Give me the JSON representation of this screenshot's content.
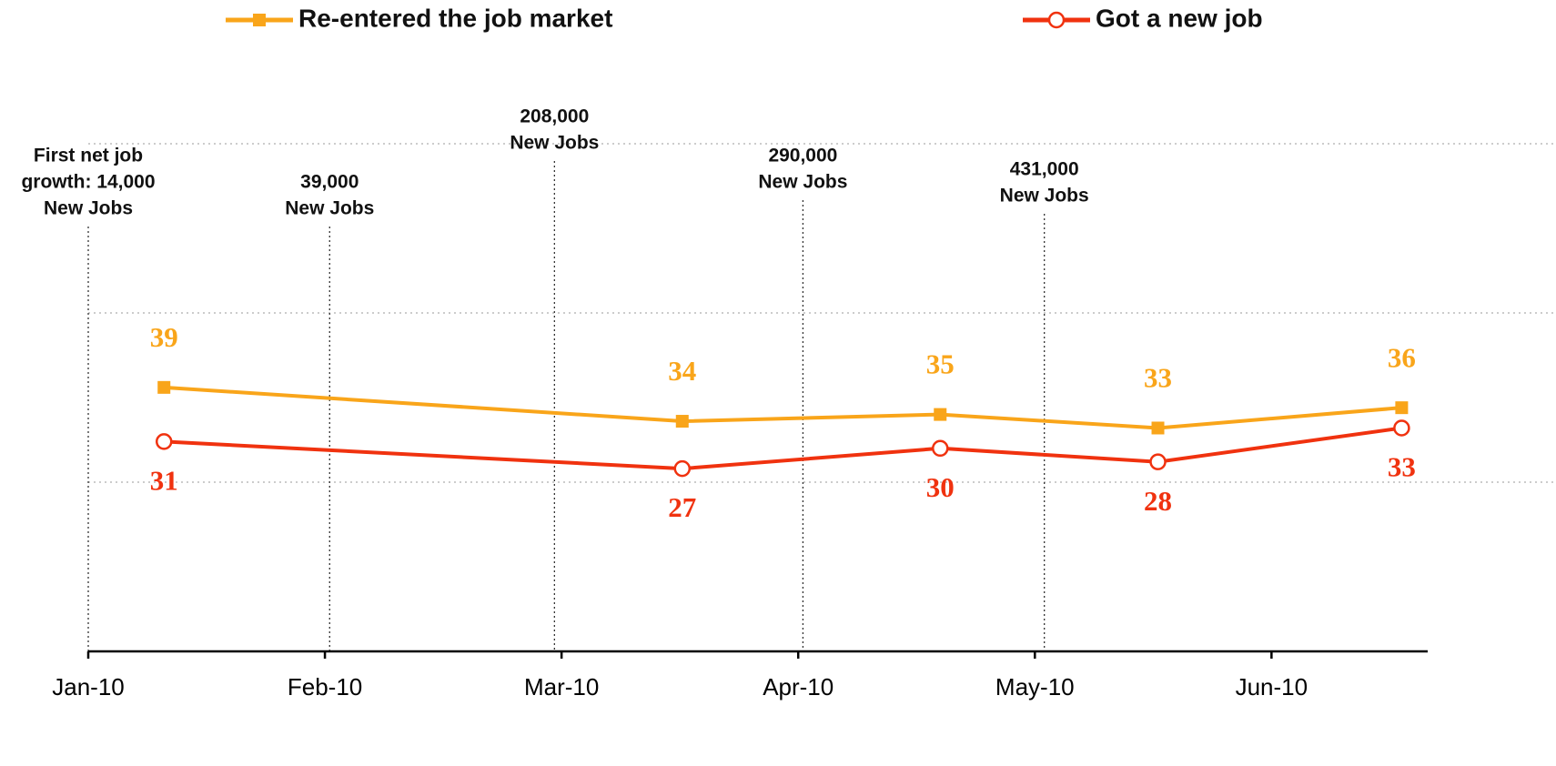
{
  "chart_data": {
    "type": "line",
    "x": [
      0.32,
      2.51,
      3.6,
      4.52,
      5.55
    ],
    "xlim": [
      0,
      5.66
    ],
    "xticks": [
      {
        "value": 0,
        "label": "Jan-10"
      },
      {
        "value": 1,
        "label": "Feb-10"
      },
      {
        "value": 2,
        "label": "Mar-10"
      },
      {
        "value": 3,
        "label": "Apr-10"
      },
      {
        "value": 4,
        "label": "May-10"
      },
      {
        "value": 5,
        "label": "Jun-10"
      }
    ],
    "ylim": [
      0,
      75
    ],
    "ygrid": [
      25,
      50,
      75
    ],
    "series": [
      {
        "name": "Re-entered the job market",
        "color": "#f9a51a",
        "marker": "square",
        "values": [
          39,
          34,
          35,
          33,
          36
        ]
      },
      {
        "name": "Got a new job",
        "color": "#f0320f",
        "marker": "open-circle",
        "values": [
          31,
          27,
          30,
          28,
          33
        ]
      }
    ],
    "annotations": [
      {
        "x": 0,
        "lines": [
          "First net job",
          "growth: 14,000",
          "New Jobs"
        ]
      },
      {
        "x": 1.02,
        "lines": [
          "39,000",
          "New Jobs"
        ]
      },
      {
        "x": 1.97,
        "lines": [
          "208,000",
          "New Jobs"
        ]
      },
      {
        "x": 3.02,
        "lines": [
          "290,000",
          "New Jobs"
        ]
      },
      {
        "x": 4.04,
        "lines": [
          "431,000",
          "New Jobs"
        ]
      }
    ]
  }
}
